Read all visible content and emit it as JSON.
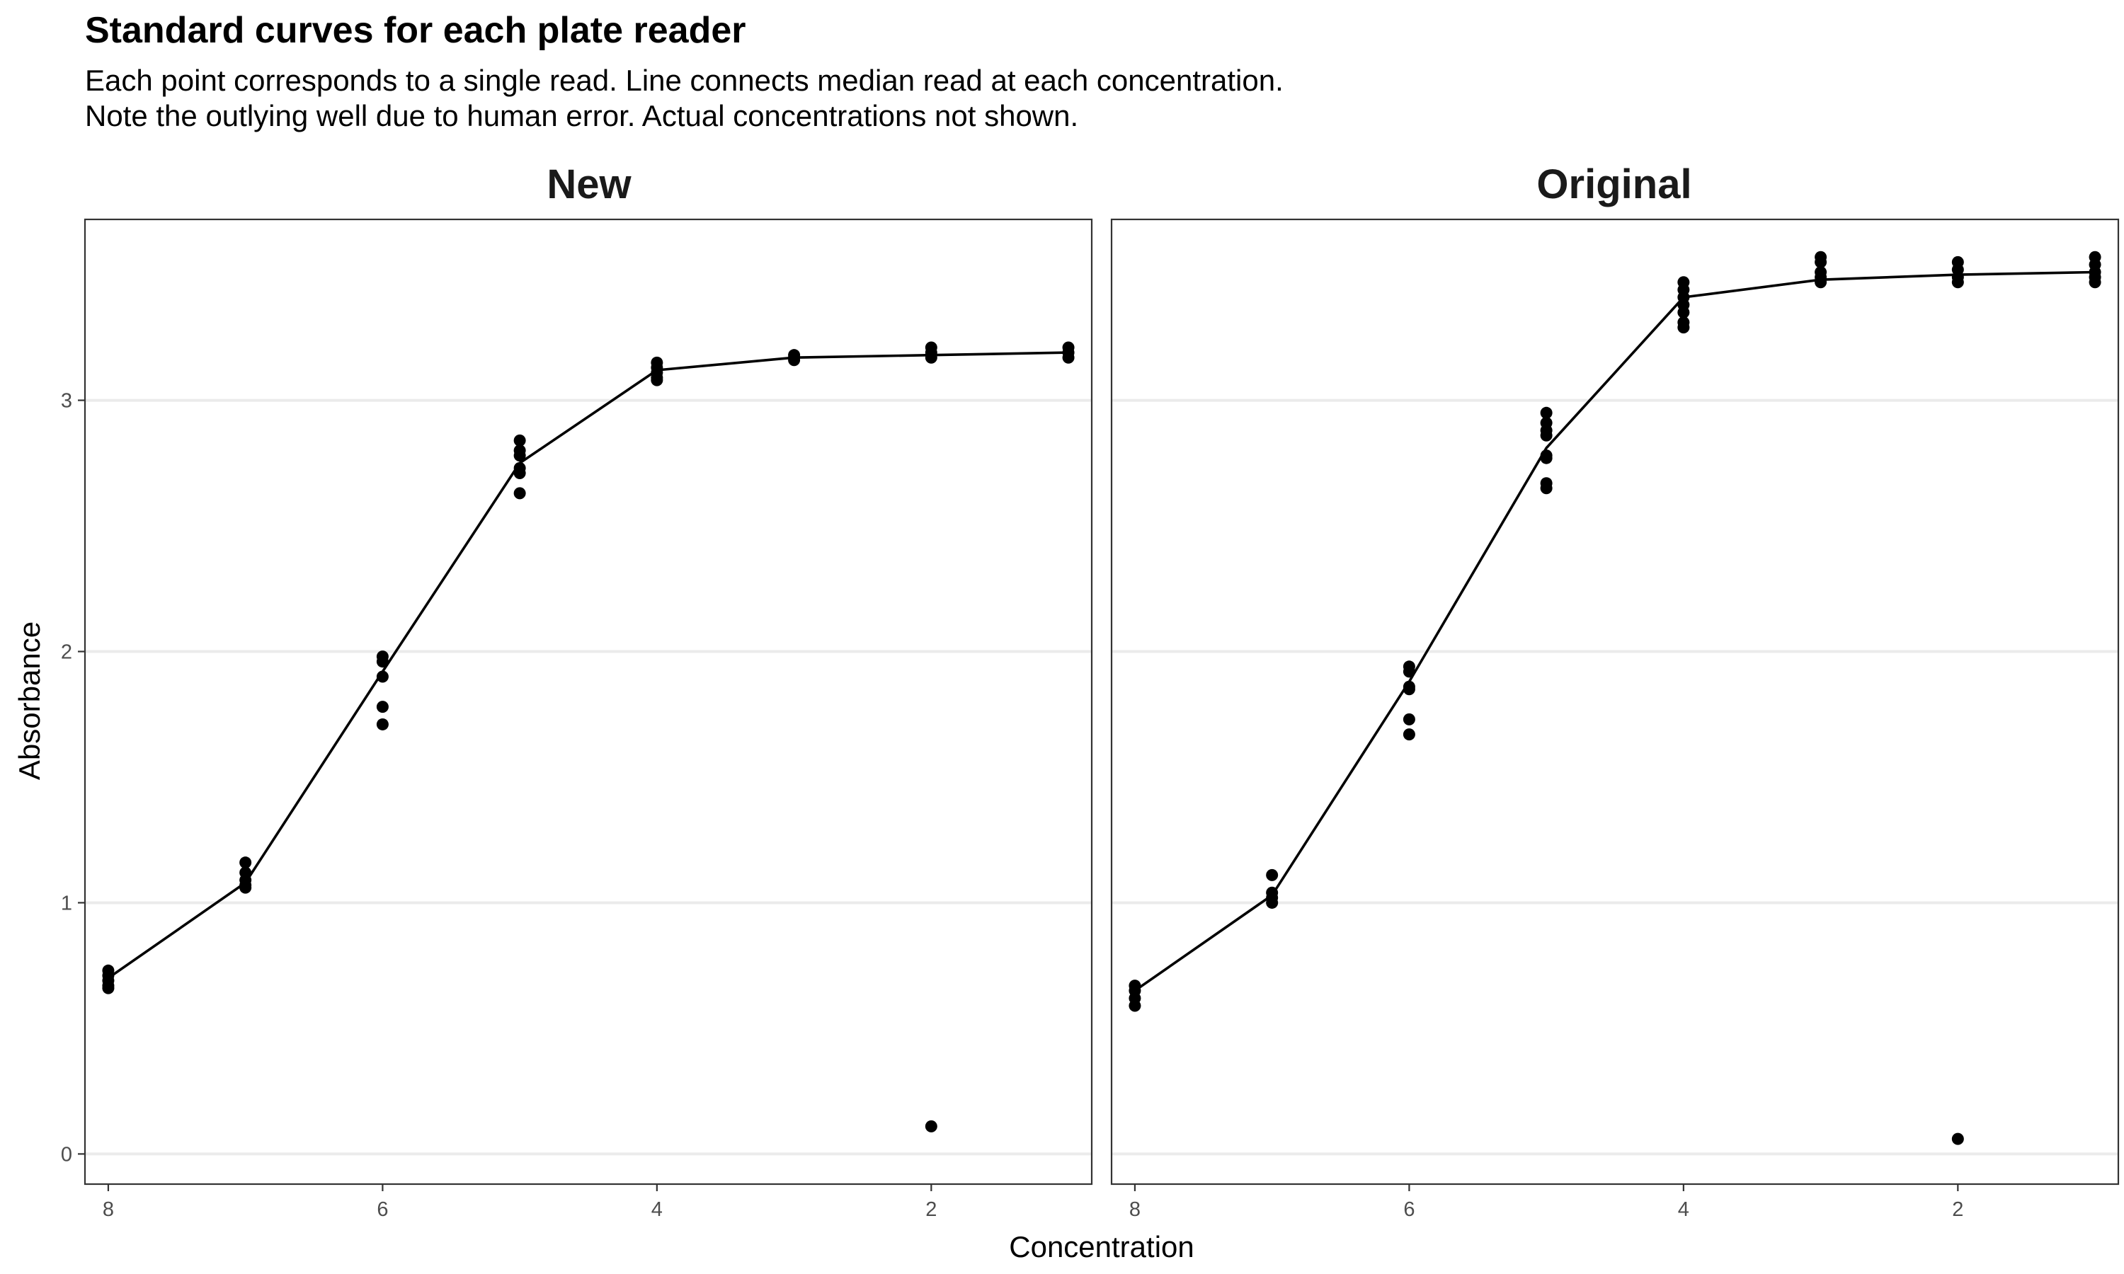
{
  "title": "Standard curves for each plate reader",
  "subtitle": [
    "Each point corresponds to a single read. Line connects median read at each concentration.",
    "Note the outlying well due to human error. Actual concentrations not shown."
  ],
  "chart_data": {
    "type": "scatter",
    "xlabel": "Concentration",
    "ylabel": "Absorbance",
    "x_reversed": true,
    "xlim": [
      8.17,
      0.83
    ],
    "ylim": [
      -0.12,
      3.72
    ],
    "x_ticks": [
      8,
      6,
      4,
      2
    ],
    "y_ticks": [
      0,
      1,
      2,
      3
    ],
    "grid": "horizontal major lines only",
    "legend": "none",
    "panels": [
      {
        "name": "New",
        "points": [
          {
            "x": 8,
            "y": [
              0.73,
              0.71,
              0.69,
              0.67,
              0.66
            ]
          },
          {
            "x": 7,
            "y": [
              1.16,
              1.12,
              1.09,
              1.07,
              1.06
            ]
          },
          {
            "x": 6,
            "y": [
              1.98,
              1.96,
              1.9,
              1.78,
              1.71
            ]
          },
          {
            "x": 5,
            "y": [
              2.84,
              2.8,
              2.78,
              2.73,
              2.71,
              2.63
            ]
          },
          {
            "x": 4,
            "y": [
              3.15,
              3.13,
              3.11,
              3.09,
              3.08
            ]
          },
          {
            "x": 3,
            "y": [
              3.18,
              3.17,
              3.16
            ]
          },
          {
            "x": 2,
            "y": [
              3.21,
              3.19,
              3.17,
              0.11
            ]
          },
          {
            "x": 1,
            "y": [
              3.21,
              3.19,
              3.17
            ]
          }
        ],
        "median_line": {
          "x": [
            8,
            7,
            6,
            5,
            4,
            3,
            2,
            1
          ],
          "y": [
            0.7,
            1.08,
            1.92,
            2.75,
            3.12,
            3.17,
            3.18,
            3.19
          ]
        }
      },
      {
        "name": "Original",
        "points": [
          {
            "x": 8,
            "y": [
              0.67,
              0.65,
              0.62,
              0.59
            ]
          },
          {
            "x": 7,
            "y": [
              1.11,
              1.04,
              1.02,
              1.0
            ]
          },
          {
            "x": 6,
            "y": [
              1.94,
              1.92,
              1.86,
              1.85,
              1.73,
              1.67
            ]
          },
          {
            "x": 5,
            "y": [
              2.95,
              2.91,
              2.88,
              2.86,
              2.78,
              2.77,
              2.67,
              2.65
            ]
          },
          {
            "x": 4,
            "y": [
              3.47,
              3.44,
              3.41,
              3.38,
              3.35,
              3.31,
              3.29
            ]
          },
          {
            "x": 3,
            "y": [
              3.57,
              3.55,
              3.51,
              3.49,
              3.47
            ]
          },
          {
            "x": 2,
            "y": [
              3.55,
              3.52,
              3.49,
              3.47,
              0.06
            ]
          },
          {
            "x": 1,
            "y": [
              3.57,
              3.54,
              3.51,
              3.49,
              3.47
            ]
          }
        ],
        "median_line": {
          "x": [
            8,
            7,
            6,
            5,
            4,
            3,
            2,
            1
          ],
          "y": [
            0.65,
            1.03,
            1.88,
            2.81,
            3.41,
            3.48,
            3.5,
            3.51
          ]
        }
      }
    ]
  }
}
